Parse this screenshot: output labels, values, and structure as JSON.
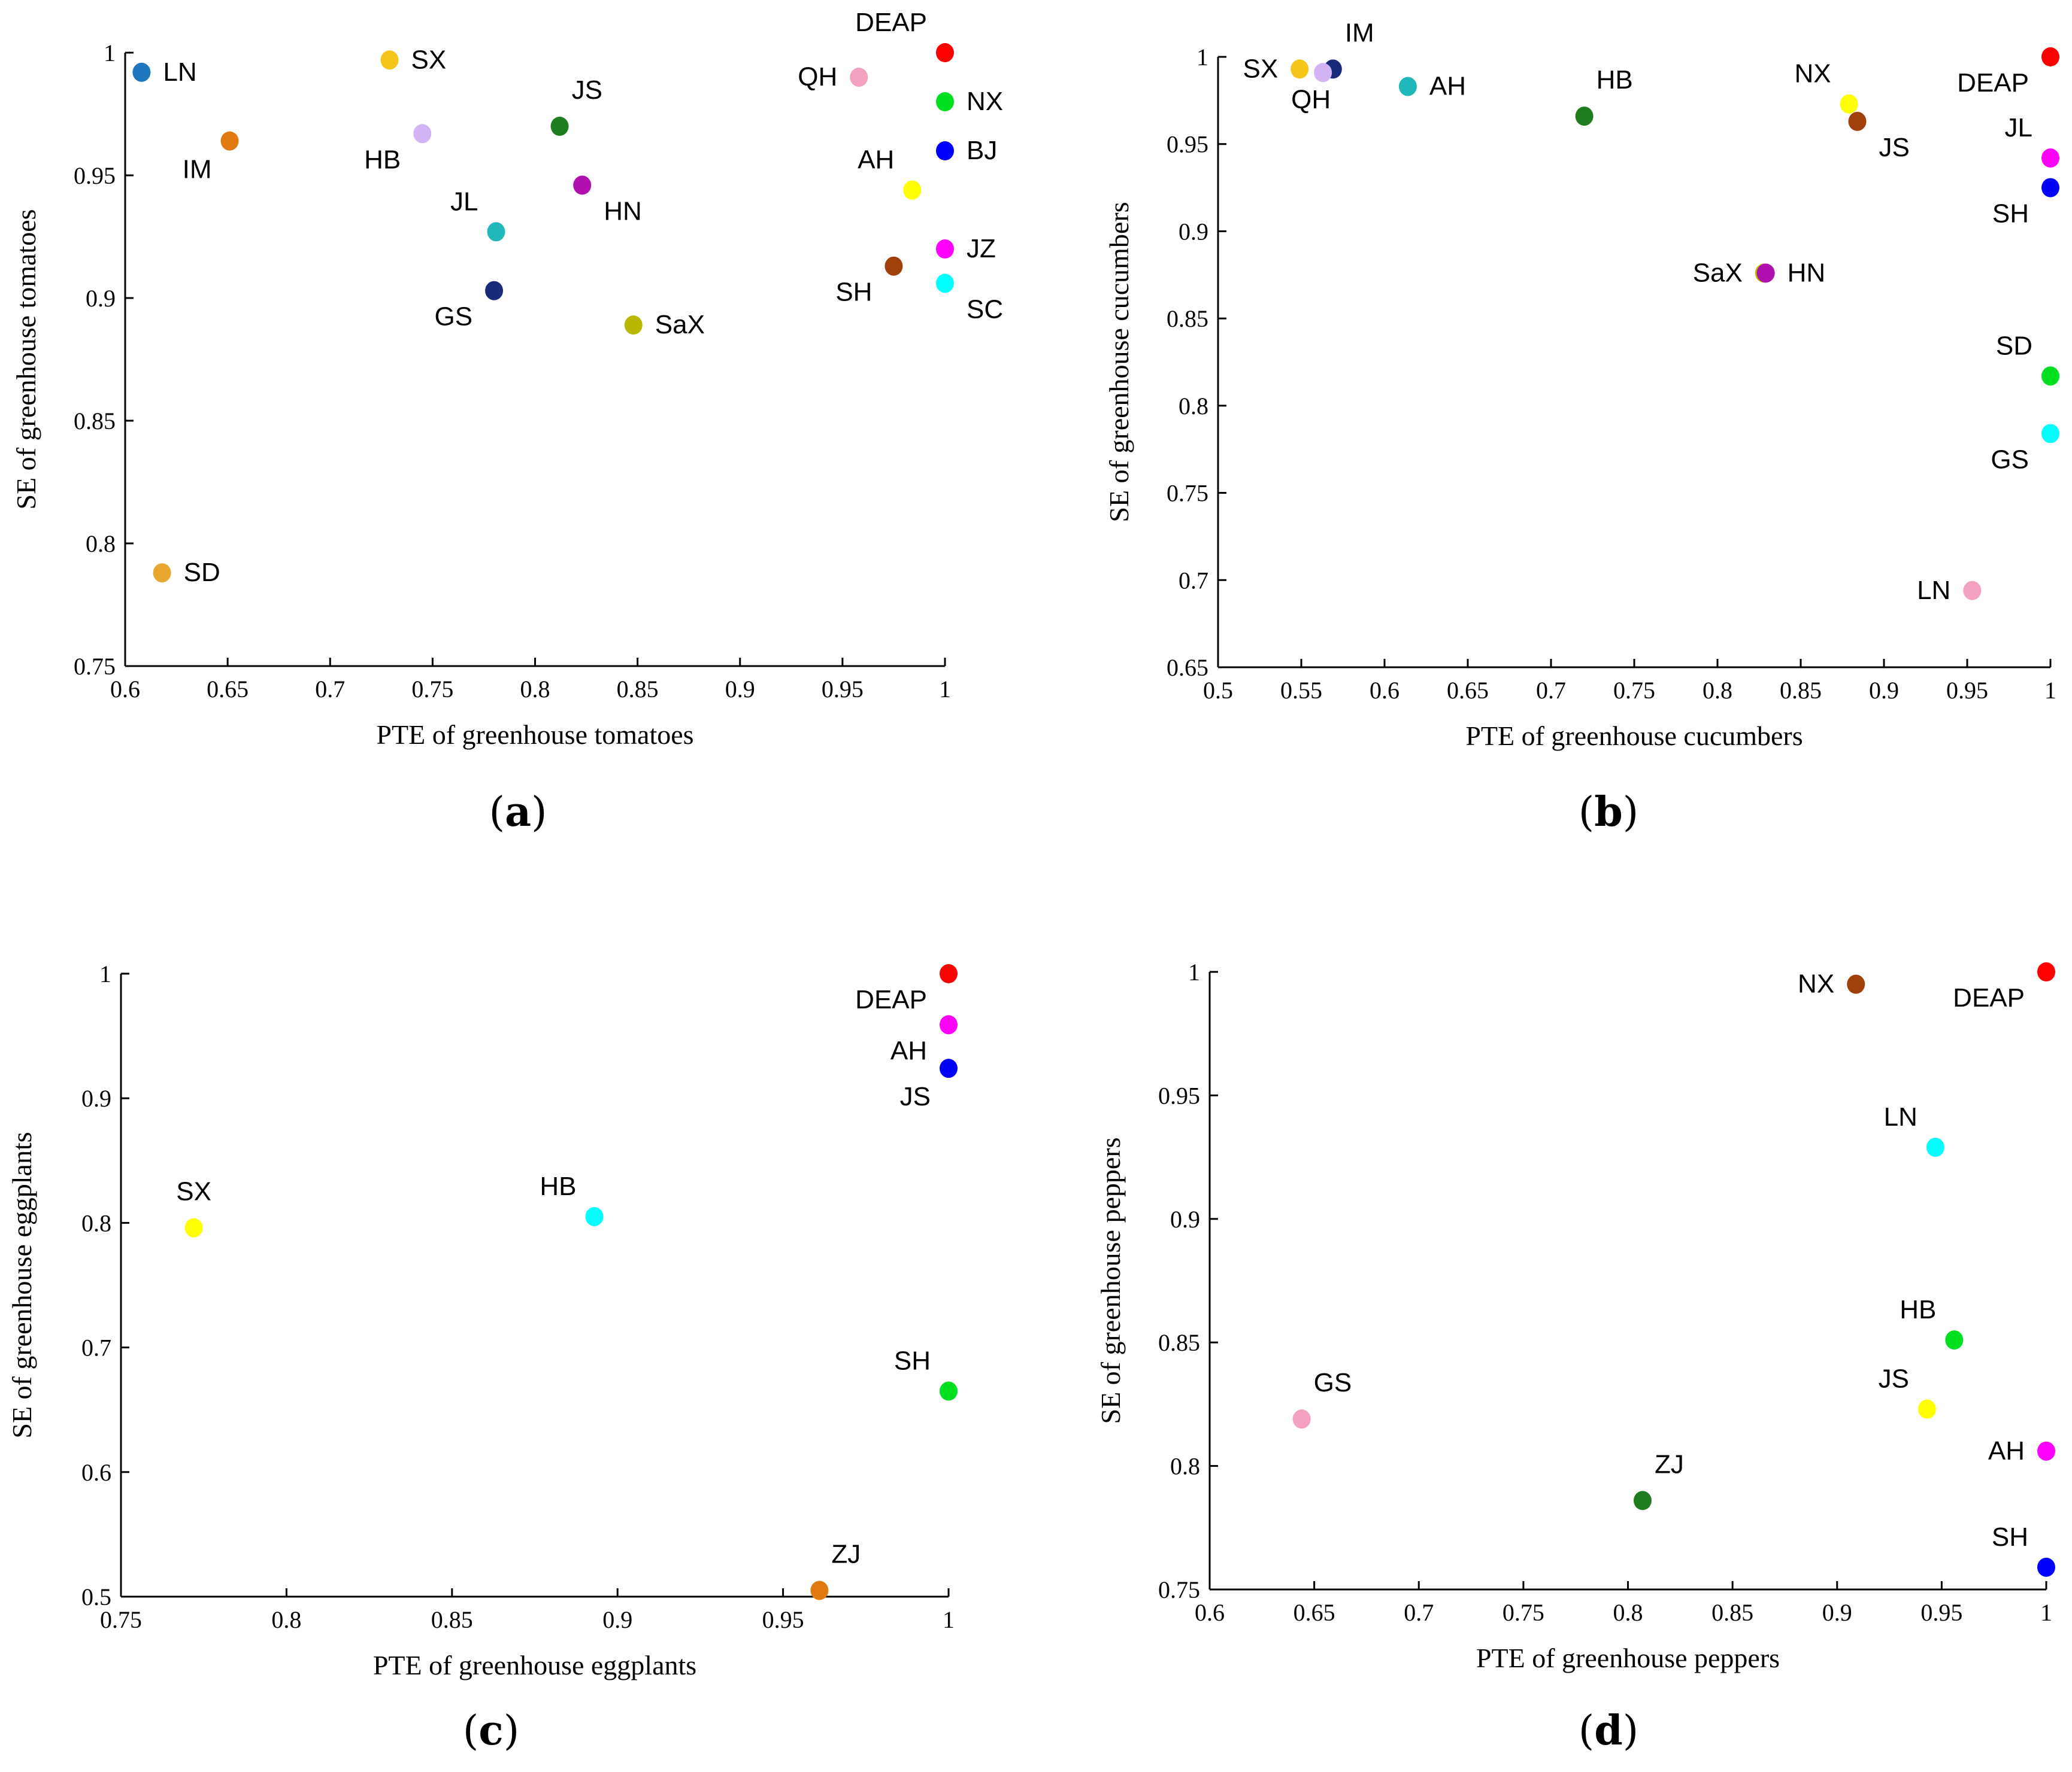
{
  "chart_data": [
    {
      "type": "scatter",
      "panel": "(a)",
      "xlabel": "PTE of greenhouse tomatoes",
      "ylabel": "SE of greenhouse tomatoes",
      "xlim": [
        0.6,
        1
      ],
      "ylim": [
        0.75,
        1
      ],
      "xticks": [
        0.6,
        0.65,
        0.7,
        0.75,
        0.8,
        0.85,
        0.9,
        0.95,
        1
      ],
      "yticks": [
        0.75,
        0.8,
        0.85,
        0.9,
        0.95,
        1
      ],
      "points": [
        {
          "label": "LN",
          "x": 0.608,
          "y": 0.992,
          "color": "#1f77c0",
          "pos": "right"
        },
        {
          "label": "SX",
          "x": 0.729,
          "y": 0.997,
          "color": "#f5c518",
          "pos": "right"
        },
        {
          "label": "IM",
          "x": 0.651,
          "y": 0.964,
          "color": "#e07a10",
          "pos": "below-left"
        },
        {
          "label": "HB",
          "x": 0.745,
          "y": 0.967,
          "color": "#d2b4f5",
          "pos": "left-low"
        },
        {
          "label": "JS",
          "x": 0.812,
          "y": 0.97,
          "color": "#1e7d1e",
          "pos": "above-right"
        },
        {
          "label": "HN",
          "x": 0.823,
          "y": 0.946,
          "color": "#b010b0",
          "pos": "right-low"
        },
        {
          "label": "JL",
          "x": 0.781,
          "y": 0.927,
          "color": "#20b8b8",
          "pos": "above-left"
        },
        {
          "label": "GS",
          "x": 0.78,
          "y": 0.903,
          "color": "#1a2a7a",
          "pos": "left-low"
        },
        {
          "label": "SaX",
          "x": 0.848,
          "y": 0.889,
          "color": "#b8b800",
          "pos": "right"
        },
        {
          "label": "SD",
          "x": 0.618,
          "y": 0.788,
          "color": "#e8a830",
          "pos": "right"
        },
        {
          "label": "DEAP",
          "x": 1.0,
          "y": 1.0,
          "color": "#ff0000",
          "pos": "above-left"
        },
        {
          "label": "QH",
          "x": 0.958,
          "y": 0.99,
          "color": "#f4a0c0",
          "pos": "left"
        },
        {
          "label": "NX",
          "x": 1.0,
          "y": 0.98,
          "color": "#00e020",
          "pos": "right"
        },
        {
          "label": "BJ",
          "x": 1.0,
          "y": 0.96,
          "color": "#0000ff",
          "pos": "right"
        },
        {
          "label": "AH",
          "x": 0.984,
          "y": 0.944,
          "color": "#ffff00",
          "pos": "above-left"
        },
        {
          "label": "JZ",
          "x": 1.0,
          "y": 0.92,
          "color": "#ff00ff",
          "pos": "right"
        },
        {
          "label": "SH",
          "x": 0.975,
          "y": 0.913,
          "color": "#a0400a",
          "pos": "left-low"
        },
        {
          "label": "SC",
          "x": 1.0,
          "y": 0.906,
          "color": "#00ffff",
          "pos": "right-low"
        }
      ]
    },
    {
      "type": "scatter",
      "panel": "(b)",
      "xlabel": "PTE of greenhouse cucumbers",
      "ylabel": "SE of greenhouse cucumbers",
      "xlim": [
        0.5,
        1
      ],
      "ylim": [
        0.65,
        1
      ],
      "xticks": [
        0.5,
        0.55,
        0.6,
        0.65,
        0.7,
        0.75,
        0.8,
        0.85,
        0.9,
        0.95,
        1
      ],
      "yticks": [
        0.65,
        0.7,
        0.75,
        0.8,
        0.85,
        0.9,
        0.95,
        1
      ],
      "points": [
        {
          "label": "SX",
          "x": 0.549,
          "y": 0.993,
          "color": "#f5c518",
          "pos": "left"
        },
        {
          "label": "IM",
          "x": 0.569,
          "y": 0.993,
          "color": "#1a2a7a",
          "pos": "above-right"
        },
        {
          "label": "QH",
          "x": 0.563,
          "y": 0.991,
          "color": "#d2b4f5",
          "pos": "below"
        },
        {
          "label": "AH",
          "x": 0.614,
          "y": 0.983,
          "color": "#20b8b8",
          "pos": "right"
        },
        {
          "label": "HB",
          "x": 0.72,
          "y": 0.966,
          "color": "#1e7d1e",
          "pos": "above-right"
        },
        {
          "label": "NX",
          "x": 0.879,
          "y": 0.973,
          "color": "#ffff00",
          "pos": "above-left"
        },
        {
          "label": "JS",
          "x": 0.884,
          "y": 0.963,
          "color": "#a0400a",
          "pos": "right-low"
        },
        {
          "label": "SaX",
          "x": 0.828,
          "y": 0.876,
          "color": "#b8b800",
          "pos": "left"
        },
        {
          "label": "HN",
          "x": 0.829,
          "y": 0.876,
          "color": "#b010b0",
          "pos": "right"
        },
        {
          "label": "DEAP",
          "x": 1.0,
          "y": 1.0,
          "color": "#ff0000",
          "pos": "left-low"
        },
        {
          "label": "JL",
          "x": 1.0,
          "y": 0.942,
          "color": "#ff00ff",
          "pos": "above-left"
        },
        {
          "label": "SH",
          "x": 1.0,
          "y": 0.925,
          "color": "#0000ff",
          "pos": "left-low"
        },
        {
          "label": "SD",
          "x": 1.0,
          "y": 0.817,
          "color": "#00e020",
          "pos": "above-left"
        },
        {
          "label": "GS",
          "x": 1.0,
          "y": 0.784,
          "color": "#00ffff",
          "pos": "left-low"
        },
        {
          "label": "LN",
          "x": 0.953,
          "y": 0.694,
          "color": "#f4a0c0",
          "pos": "left"
        }
      ]
    },
    {
      "type": "scatter",
      "panel": "(c)",
      "xlabel": "PTE of  greenhouse eggplants",
      "ylabel": "SE of  greenhouse eggplants",
      "xlim": [
        0.75,
        1
      ],
      "ylim": [
        0.5,
        1
      ],
      "xticks": [
        0.75,
        0.8,
        0.85,
        0.9,
        0.95,
        1
      ],
      "yticks": [
        0.5,
        0.6,
        0.7,
        0.8,
        0.9,
        1
      ],
      "points": [
        {
          "label": "DEAP",
          "x": 1.0,
          "y": 1.0,
          "color": "#ff0000",
          "pos": "left-low"
        },
        {
          "label": "AH",
          "x": 1.0,
          "y": 0.959,
          "color": "#ff00ff",
          "pos": "left-low"
        },
        {
          "label": "JS",
          "x": 1.0,
          "y": 0.924,
          "color": "#0000ff",
          "pos": "below-left"
        },
        {
          "label": "SX",
          "x": 0.772,
          "y": 0.796,
          "color": "#ffff00",
          "pos": "above"
        },
        {
          "label": "HB",
          "x": 0.893,
          "y": 0.805,
          "color": "#00ffff",
          "pos": "above-left"
        },
        {
          "label": "SH",
          "x": 1.0,
          "y": 0.665,
          "color": "#00e020",
          "pos": "above-left"
        },
        {
          "label": "ZJ",
          "x": 0.961,
          "y": 0.505,
          "color": "#e07a10",
          "pos": "above-right"
        }
      ]
    },
    {
      "type": "scatter",
      "panel": "(d)",
      "xlabel": "PTE of greenhouse peppers",
      "ylabel": "SE of greenhouse peppers",
      "xlim": [
        0.6,
        1
      ],
      "ylim": [
        0.75,
        1
      ],
      "xticks": [
        0.6,
        0.65,
        0.7,
        0.75,
        0.8,
        0.85,
        0.9,
        0.95,
        1
      ],
      "yticks": [
        0.75,
        0.8,
        0.85,
        0.9,
        0.95,
        1
      ],
      "points": [
        {
          "label": "NX",
          "x": 0.909,
          "y": 0.995,
          "color": "#a0400a",
          "pos": "left"
        },
        {
          "label": "DEAP",
          "x": 1.0,
          "y": 1.0,
          "color": "#ff0000",
          "pos": "left-low"
        },
        {
          "label": "LN",
          "x": 0.947,
          "y": 0.929,
          "color": "#00ffff",
          "pos": "above-left"
        },
        {
          "label": "HB",
          "x": 0.956,
          "y": 0.851,
          "color": "#00e020",
          "pos": "above-left"
        },
        {
          "label": "JS",
          "x": 0.943,
          "y": 0.823,
          "color": "#ffff00",
          "pos": "above-left"
        },
        {
          "label": "AH",
          "x": 1.0,
          "y": 0.806,
          "color": "#ff00ff",
          "pos": "left"
        },
        {
          "label": "GS",
          "x": 0.644,
          "y": 0.819,
          "color": "#f4a0c0",
          "pos": "above-right"
        },
        {
          "label": "ZJ",
          "x": 0.807,
          "y": 0.786,
          "color": "#1e7d1e",
          "pos": "above-right"
        },
        {
          "label": "SH",
          "x": 1.0,
          "y": 0.759,
          "color": "#0000ff",
          "pos": "above-left"
        }
      ]
    }
  ]
}
